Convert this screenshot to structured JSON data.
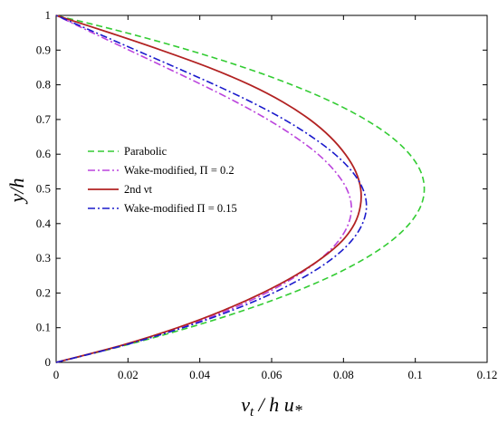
{
  "chart_data": {
    "type": "line",
    "xlabel": "νt / h u*",
    "ylabel": "y/h",
    "xlim": [
      0,
      0.12
    ],
    "ylim": [
      0,
      1
    ],
    "xticks": [
      "0",
      "0.02",
      "0.04",
      "0.06",
      "0.08",
      "0.1",
      "0.12"
    ],
    "yticks": [
      "0",
      "0.1",
      "0.2",
      "0.3",
      "0.4",
      "0.5",
      "0.6",
      "0.7",
      "0.8",
      "0.9",
      "1"
    ],
    "grid": false,
    "legend_position": "center-left",
    "series": [
      {
        "name": "Parabolic",
        "color": "#33cc33",
        "style": "dashed",
        "y": [
          0,
          0.05,
          0.1,
          0.15,
          0.2,
          0.25,
          0.3,
          0.35,
          0.4,
          0.45,
          0.5,
          0.55,
          0.6,
          0.65,
          0.7,
          0.75,
          0.8,
          0.85,
          0.9,
          0.95,
          1
        ],
        "x": [
          0,
          0.0195,
          0.0369,
          0.0523,
          0.0656,
          0.0769,
          0.0861,
          0.0933,
          0.0984,
          0.1015,
          0.1025,
          0.1015,
          0.0984,
          0.0933,
          0.0861,
          0.0769,
          0.0656,
          0.0523,
          0.0369,
          0.0195,
          0
        ]
      },
      {
        "name": "Wake-modified, Π = 0.2",
        "color": "#bb44dd",
        "style": "dashdot",
        "y": [
          0,
          0.05,
          0.1,
          0.15,
          0.2,
          0.25,
          0.3,
          0.35,
          0.4,
          0.45,
          0.5,
          0.55,
          0.6,
          0.65,
          0.7,
          0.75,
          0.8,
          0.85,
          0.9,
          0.95,
          1
        ],
        "x": [
          0,
          0.0191,
          0.0348,
          0.0478,
          0.0585,
          0.0671,
          0.0738,
          0.0786,
          0.0814,
          0.0822,
          0.0809,
          0.0777,
          0.0729,
          0.0665,
          0.0589,
          0.0502,
          0.0406,
          0.0305,
          0.0203,
          0.0101,
          0
        ]
      },
      {
        "name": "2nd νt",
        "color": "#b22222",
        "style": "solid",
        "y": [
          0,
          0.05,
          0.1,
          0.15,
          0.2,
          0.25,
          0.3,
          0.35,
          0.4,
          0.45,
          0.5,
          0.55,
          0.6,
          0.65,
          0.7,
          0.75,
          0.8,
          0.85,
          0.9,
          0.95,
          1
        ],
        "x": [
          0,
          0.0185,
          0.0338,
          0.0466,
          0.0574,
          0.0665,
          0.0739,
          0.0796,
          0.0831,
          0.0847,
          0.0848,
          0.0834,
          0.0805,
          0.0763,
          0.0706,
          0.0632,
          0.0539,
          0.0425,
          0.0292,
          0.0149,
          0
        ]
      },
      {
        "name": "Wake-modified Π = 0.15",
        "color": "#1a1acc",
        "style": "dashdot",
        "y": [
          0,
          0.05,
          0.1,
          0.15,
          0.2,
          0.25,
          0.3,
          0.35,
          0.4,
          0.45,
          0.5,
          0.55,
          0.6,
          0.65,
          0.7,
          0.75,
          0.8,
          0.85,
          0.9,
          0.95,
          1
        ],
        "x": [
          0,
          0.0191,
          0.0353,
          0.049,
          0.0604,
          0.0697,
          0.077,
          0.0822,
          0.0853,
          0.0864,
          0.0854,
          0.0824,
          0.0776,
          0.0712,
          0.0635,
          0.0544,
          0.0442,
          0.0333,
          0.0222,
          0.0111,
          0
        ]
      }
    ]
  }
}
